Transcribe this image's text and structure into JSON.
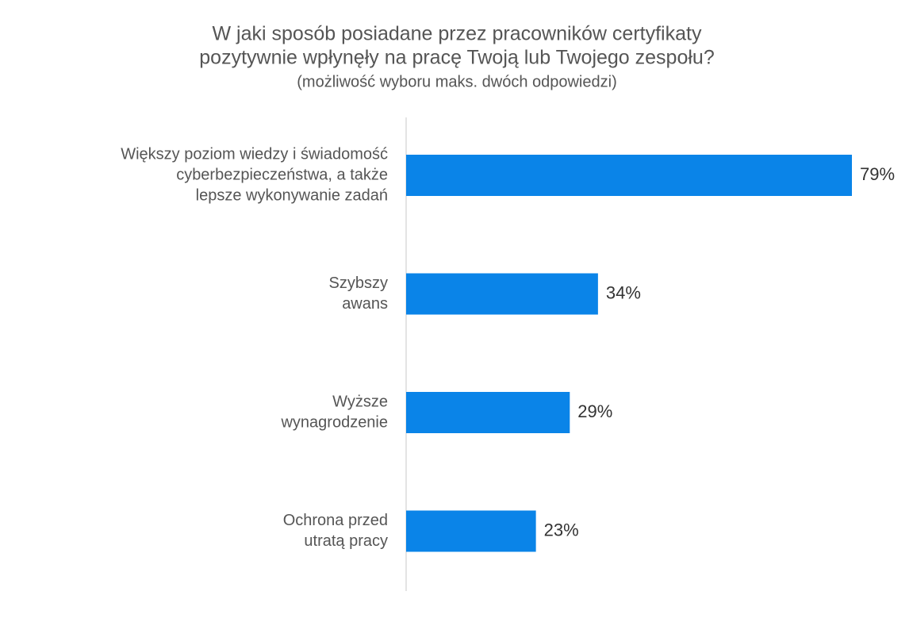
{
  "chart_data": {
    "type": "bar",
    "orientation": "horizontal",
    "title": [
      "W jaki sposób posiadane przez pracowników certyfikaty",
      "pozytywnie wpłynęły na pracę Twoją lub Twojego zespołu?"
    ],
    "subtitle": "(możliwość wyboru maks. dwóch odpowiedzi)",
    "categories": [
      [
        "Większy poziom wiedzy i świadomość",
        "cyberbezpieczeństwa, a także",
        "lepsze wykonywanie zadań"
      ],
      [
        "Szybszy",
        "awans"
      ],
      [
        "Wyższe",
        "wynagrodzenie"
      ],
      [
        "Ochrona przed",
        "utratą pracy"
      ]
    ],
    "values": [
      79,
      34,
      29,
      23
    ],
    "value_labels": [
      "79%",
      "34%",
      "29%",
      "23%"
    ],
    "color": "#0a84e8"
  }
}
